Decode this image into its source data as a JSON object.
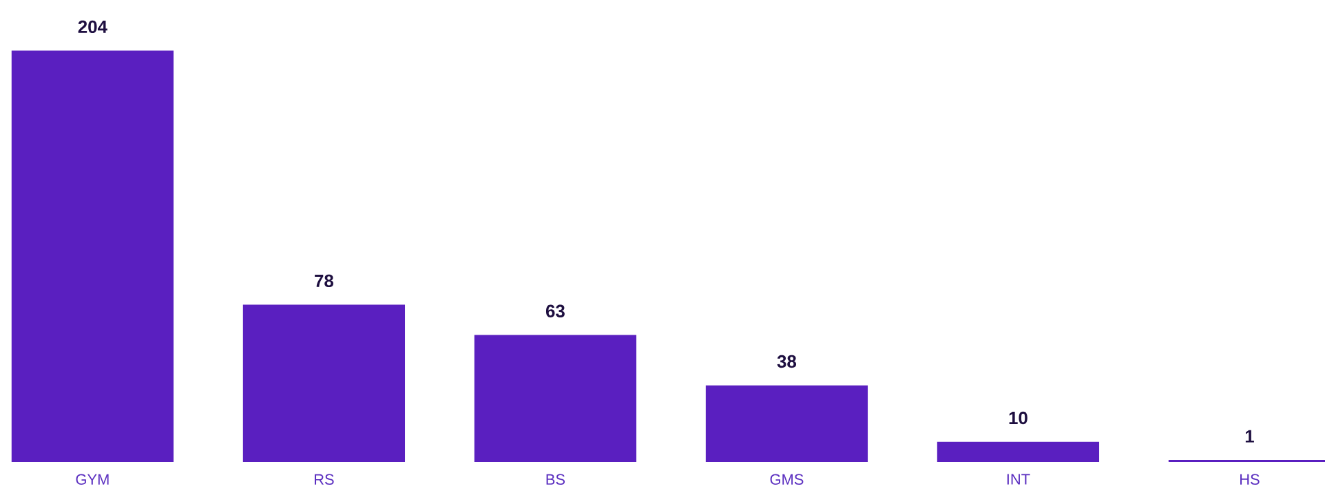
{
  "chart_data": {
    "type": "bar",
    "categories": [
      "GYM",
      "RS",
      "BS",
      "GMS",
      "INT",
      "HS"
    ],
    "values": [
      204,
      78,
      63,
      38,
      10,
      1
    ],
    "color": "#5a1fc0",
    "data_labels": true
  }
}
